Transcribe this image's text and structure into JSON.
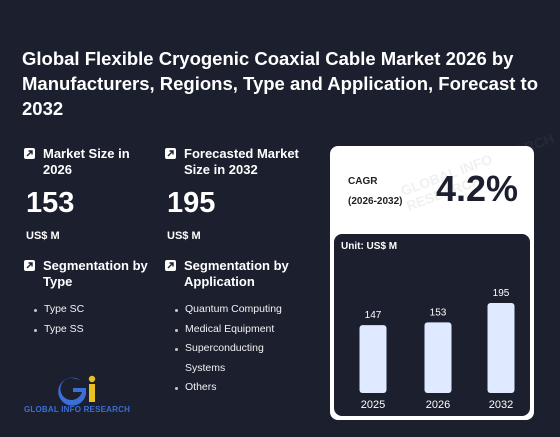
{
  "title": "Global Flexible Cryogenic Coaxial Cable Market 2026 by Manufacturers, Regions, Type and Application, Forecast to 2032",
  "market_size": {
    "label": "Market Size in 2026",
    "value": "153",
    "unit": "US$ M"
  },
  "forecast_size": {
    "label": "Forecasted Market Size in 2032",
    "value": "195",
    "unit": "US$ M"
  },
  "segmentation_type": {
    "label": "Segmentation by Type",
    "items": [
      "Type SC",
      "Type SS"
    ]
  },
  "segmentation_application": {
    "label": "Segmentation by Application",
    "items": [
      "Quantum Computing",
      "Medical Equipment",
      "Superconducting Systems",
      "Others"
    ]
  },
  "cagr": {
    "label": "CAGR",
    "period": "(2026-2032)",
    "value": "4.2%"
  },
  "logo": {
    "text": "GLOBAL INFO RESEARCH"
  },
  "watermark_text": "GLOBAL INFO RESEARCH",
  "colors": {
    "background": "#1b1f2e",
    "bar": "#dfe9ff",
    "logo_blue": "#3b6fd6",
    "logo_yellow": "#e8c020"
  },
  "chart_data": {
    "type": "bar",
    "unit_label": "Unit: US$ M",
    "categories": [
      "2025",
      "2026",
      "2032"
    ],
    "values": [
      147,
      153,
      195
    ],
    "ylim": [
      0,
      195
    ]
  }
}
